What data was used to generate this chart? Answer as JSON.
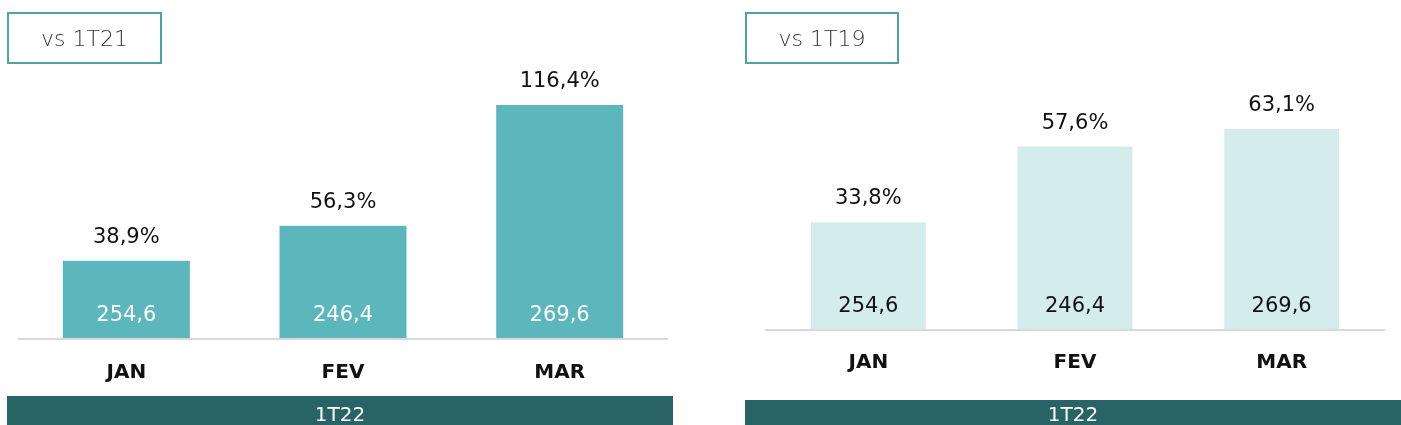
{
  "chart_data": [
    {
      "type": "bar",
      "title": "vs 1T21",
      "xlabel": "1T22",
      "categories": [
        "JAN",
        "FEV",
        "MAR"
      ],
      "values": [
        38.9,
        56.3,
        116.4
      ],
      "color": "#5cb7bc",
      "value_labels": [
        "38,9%",
        "56,3%",
        "116,4%"
      ],
      "annotations": [
        {
          "text": "254,6",
          "x": "JAN",
          "y": 0
        },
        {
          "text": "246,4",
          "x": "FEV",
          "y": 0
        },
        {
          "text": "269,6",
          "x": "MAR",
          "y": 0
        }
      ]
    },
    {
      "type": "bar",
      "title": "vs 1T19",
      "xlabel": "1T22",
      "categories": [
        "JAN",
        "FEV",
        "MAR"
      ],
      "values": [
        33.8,
        57.6,
        63.1
      ],
      "color": "#d5ecec",
      "value_labels": [
        "33,8%",
        "57,6%",
        "63,1%"
      ],
      "annotations": [
        {
          "text": "254,6",
          "x": "JAN",
          "y": 0
        },
        {
          "text": "246,4",
          "x": "FEV",
          "y": 0
        },
        {
          "text": "269,6",
          "x": "MAR",
          "y": 0
        }
      ]
    }
  ]
}
